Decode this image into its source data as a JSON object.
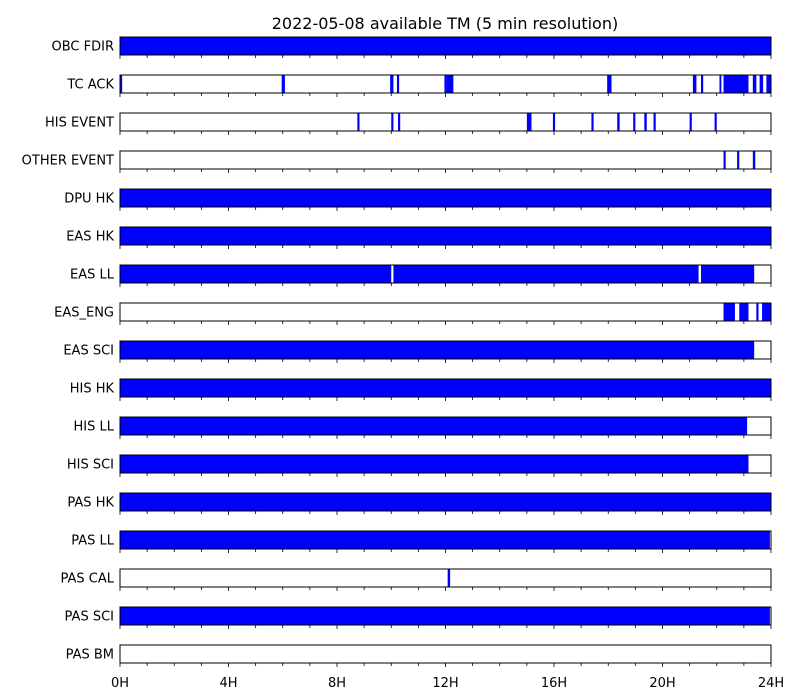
{
  "chart_data": {
    "type": "timeline",
    "title": "2022-05-08 available TM (5 min resolution)",
    "x_unit": "hours",
    "xlim": [
      0,
      24
    ],
    "x_ticks": [
      0,
      4,
      8,
      12,
      16,
      20,
      24
    ],
    "x_tick_labels": [
      "0H",
      "4H",
      "8H",
      "12H",
      "16H",
      "20H",
      "24H"
    ],
    "bar_color": "#0000ff",
    "rows": [
      {
        "label": "OBC FDIR",
        "intervals": [
          [
            0,
            24
          ]
        ]
      },
      {
        "label": "TC ACK",
        "intervals": [
          [
            0,
            0.08
          ],
          [
            5.96,
            6.08
          ],
          [
            9.96,
            10.08
          ],
          [
            10.21,
            10.29
          ],
          [
            11.96,
            12.04
          ],
          [
            12.04,
            12.29
          ],
          [
            17.96,
            18.12
          ],
          [
            21.12,
            21.25
          ],
          [
            21.42,
            21.5
          ],
          [
            22.1,
            22.17
          ],
          [
            22.25,
            23.17
          ],
          [
            23.33,
            23.46
          ],
          [
            23.58,
            23.71
          ],
          [
            23.83,
            24
          ]
        ]
      },
      {
        "label": "HIS EVENT",
        "intervals": [
          [
            8.75,
            8.83
          ],
          [
            10,
            10.08
          ],
          [
            10.25,
            10.33
          ],
          [
            15,
            15.17
          ],
          [
            15.96,
            16.04
          ],
          [
            17.38,
            17.46
          ],
          [
            18.33,
            18.42
          ],
          [
            18.92,
            19
          ],
          [
            19.33,
            19.42
          ],
          [
            19.67,
            19.75
          ],
          [
            21,
            21.08
          ],
          [
            21.92,
            22
          ]
        ]
      },
      {
        "label": "OTHER EVENT",
        "intervals": [
          [
            22.25,
            22.33
          ],
          [
            22.75,
            22.83
          ],
          [
            23.33,
            23.42
          ]
        ]
      },
      {
        "label": "DPU HK",
        "intervals": [
          [
            0,
            24
          ]
        ]
      },
      {
        "label": "EAS HK",
        "intervals": [
          [
            0,
            24
          ]
        ]
      },
      {
        "label": "EAS LL",
        "intervals": [
          [
            0,
            10
          ],
          [
            10.08,
            21.33
          ],
          [
            21.42,
            23.38
          ]
        ]
      },
      {
        "label": "EAS_ENG",
        "intervals": [
          [
            22.25,
            22.67
          ],
          [
            22.83,
            23.17
          ],
          [
            23.46,
            23.54
          ],
          [
            23.67,
            24
          ]
        ]
      },
      {
        "label": "EAS SCI",
        "intervals": [
          [
            0,
            23.38
          ]
        ]
      },
      {
        "label": "HIS HK",
        "intervals": [
          [
            0,
            24
          ]
        ]
      },
      {
        "label": "HIS LL",
        "intervals": [
          [
            0,
            23.12
          ]
        ]
      },
      {
        "label": "HIS SCI",
        "intervals": [
          [
            0,
            23.17
          ]
        ]
      },
      {
        "label": "PAS HK",
        "intervals": [
          [
            0,
            24
          ]
        ]
      },
      {
        "label": "PAS LL",
        "intervals": [
          [
            0,
            23.96
          ]
        ]
      },
      {
        "label": "PAS CAL",
        "intervals": [
          [
            12.08,
            12.17
          ]
        ]
      },
      {
        "label": "PAS SCI",
        "intervals": [
          [
            0,
            23.96
          ]
        ]
      },
      {
        "label": "PAS BM",
        "intervals": []
      }
    ]
  }
}
